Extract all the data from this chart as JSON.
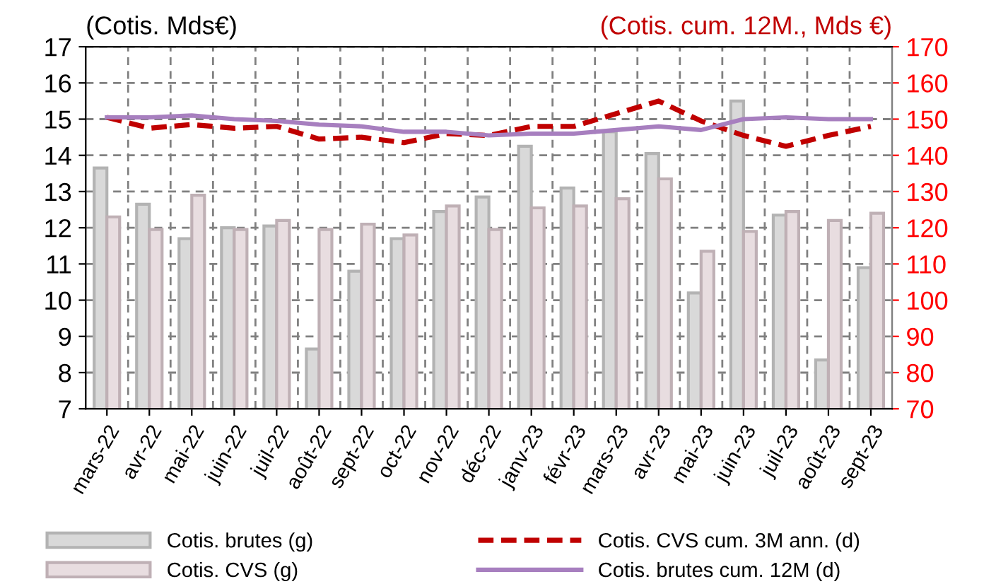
{
  "chart_data": {
    "type": "bar",
    "ylabel": "(Cotis. Mds€)",
    "y2label": "(Cotis. cum. 12M., Mds €)",
    "categories": [
      "mars-22",
      "avr-22",
      "mai-22",
      "juin-22",
      "juil-22",
      "août-22",
      "sept-22",
      "oct-22",
      "nov-22",
      "déc-22",
      "janv-23",
      "févr-23",
      "mars-23",
      "avr-23",
      "mai-23",
      "juin-23",
      "juil-23",
      "août-23",
      "sept-23"
    ],
    "series": [
      {
        "name": "Cotis. brutes (g)",
        "color": "#d9d9d9",
        "values": [
          13.65,
          12.65,
          11.7,
          12.0,
          12.05,
          8.65,
          10.8,
          11.7,
          12.45,
          12.85,
          14.25,
          13.1,
          14.65,
          14.05,
          10.2,
          15.5,
          12.35,
          8.35,
          10.9
        ]
      },
      {
        "name": "Cotis. CVS (g)",
        "color": "#e8dde0",
        "values": [
          12.3,
          11.95,
          12.9,
          11.95,
          12.2,
          11.95,
          12.1,
          11.8,
          12.6,
          11.95,
          12.55,
          12.6,
          12.8,
          13.35,
          11.35,
          11.9,
          12.45,
          12.2,
          12.4
        ]
      },
      {
        "name": "Cotis. CVS cum. 3M ann. (d)",
        "type": "line",
        "axis": "y2",
        "line_style": "dashed",
        "color": "#c00000",
        "values": [
          150.5,
          147.5,
          148.5,
          147.5,
          148,
          144.5,
          145,
          143.5,
          146,
          145.5,
          148,
          148,
          151.5,
          155,
          149.5,
          145.5,
          142.5,
          145.5,
          148
        ]
      },
      {
        "name": "Cotis. brutes cum. 12M (d)",
        "type": "line",
        "axis": "y2",
        "line_style": "solid",
        "color": "#a77fbf",
        "values": [
          150.5,
          150.5,
          151,
          150,
          149.5,
          148.5,
          148,
          146.5,
          146.5,
          145.5,
          146,
          146,
          147,
          148,
          147,
          150,
          150.5,
          150,
          150
        ]
      }
    ],
    "ylim": [
      7,
      17
    ],
    "yticks": [
      7,
      8,
      9,
      10,
      11,
      12,
      13,
      14,
      15,
      16,
      17
    ],
    "y2lim": [
      70,
      170
    ],
    "y2ticks": [
      70,
      80,
      90,
      100,
      110,
      120,
      130,
      140,
      150,
      160,
      170
    ],
    "grid": true,
    "legend": "bottom"
  }
}
